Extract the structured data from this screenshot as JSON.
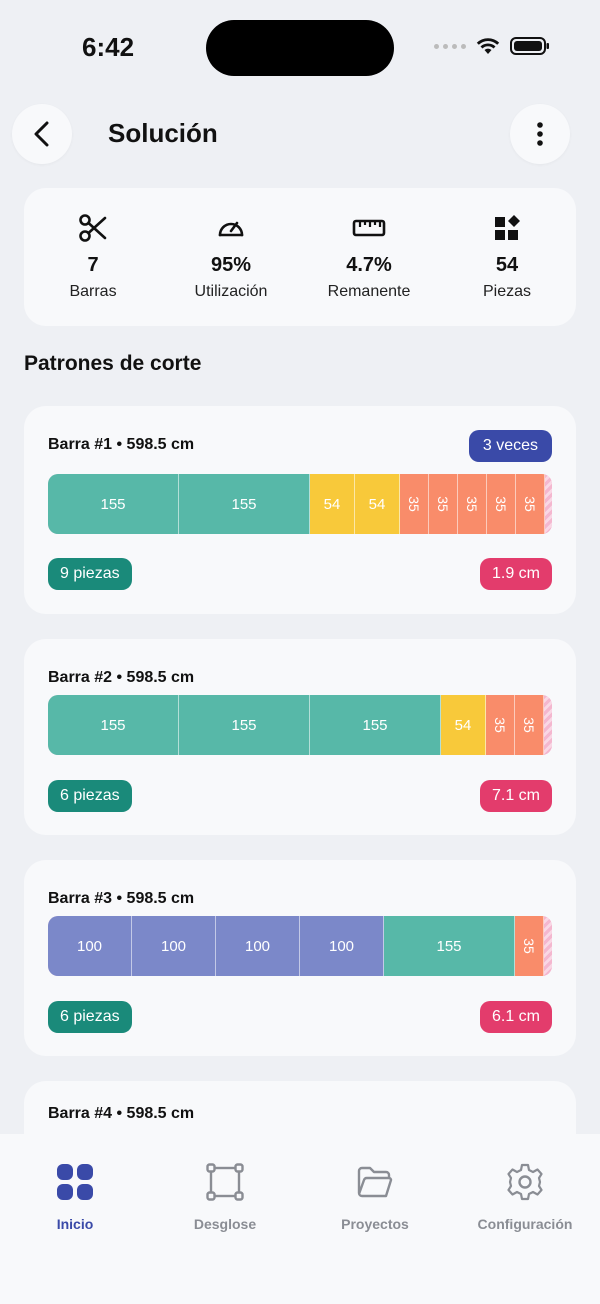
{
  "status_bar": {
    "time": "6:42"
  },
  "header": {
    "title": "Solución"
  },
  "stats": [
    {
      "icon": "scissors-icon",
      "value": "7",
      "label": "Barras"
    },
    {
      "icon": "gauge-icon",
      "value": "95%",
      "label": "Utilización"
    },
    {
      "icon": "ruler-icon",
      "value": "4.7%",
      "label": "Remanente"
    },
    {
      "icon": "shapes-icon",
      "value": "54",
      "label": "Piezas"
    }
  ],
  "section_title": "Patrones de corte",
  "bars": [
    {
      "title": "Barra #1 • 598.5 cm",
      "repeat": "3 veces",
      "pieces": "9 piezas",
      "remnant": "1.9 cm",
      "segments": [
        {
          "label": "155",
          "value": 155
        },
        {
          "label": "155",
          "value": 155
        },
        {
          "label": "54",
          "value": 54
        },
        {
          "label": "54",
          "value": 54
        },
        {
          "label": "35",
          "value": 35
        },
        {
          "label": "35",
          "value": 35
        },
        {
          "label": "35",
          "value": 35
        },
        {
          "label": "35",
          "value": 35
        },
        {
          "label": "35",
          "value": 35
        }
      ]
    },
    {
      "title": "Barra #2 • 598.5 cm",
      "repeat": "",
      "pieces": "6 piezas",
      "remnant": "7.1 cm",
      "segments": [
        {
          "label": "155",
          "value": 155
        },
        {
          "label": "155",
          "value": 155
        },
        {
          "label": "155",
          "value": 155
        },
        {
          "label": "54",
          "value": 54
        },
        {
          "label": "35",
          "value": 35
        },
        {
          "label": "35",
          "value": 35
        }
      ]
    },
    {
      "title": "Barra #3 • 598.5 cm",
      "repeat": "",
      "pieces": "6 piezas",
      "remnant": "6.1 cm",
      "segments": [
        {
          "label": "100",
          "value": 100
        },
        {
          "label": "100",
          "value": 100
        },
        {
          "label": "100",
          "value": 100
        },
        {
          "label": "100",
          "value": 100
        },
        {
          "label": "155",
          "value": 155
        },
        {
          "label": "35",
          "value": 35
        }
      ]
    },
    {
      "title": "Barra #4 • 598.5 cm",
      "repeat": "",
      "pieces": "",
      "remnant": "",
      "segments": []
    }
  ],
  "piece_colors": {
    "155": "#57b8a8",
    "100": "#7b88c9",
    "54": "#f8c93a",
    "35": "#f98c6a"
  },
  "nav": [
    {
      "label": "Inicio",
      "icon": "grid-icon",
      "active": true
    },
    {
      "label": "Desglose",
      "icon": "frame-icon",
      "active": false
    },
    {
      "label": "Proyectos",
      "icon": "folder-icon",
      "active": false
    },
    {
      "label": "Configuración",
      "icon": "gear-icon",
      "active": false
    }
  ]
}
